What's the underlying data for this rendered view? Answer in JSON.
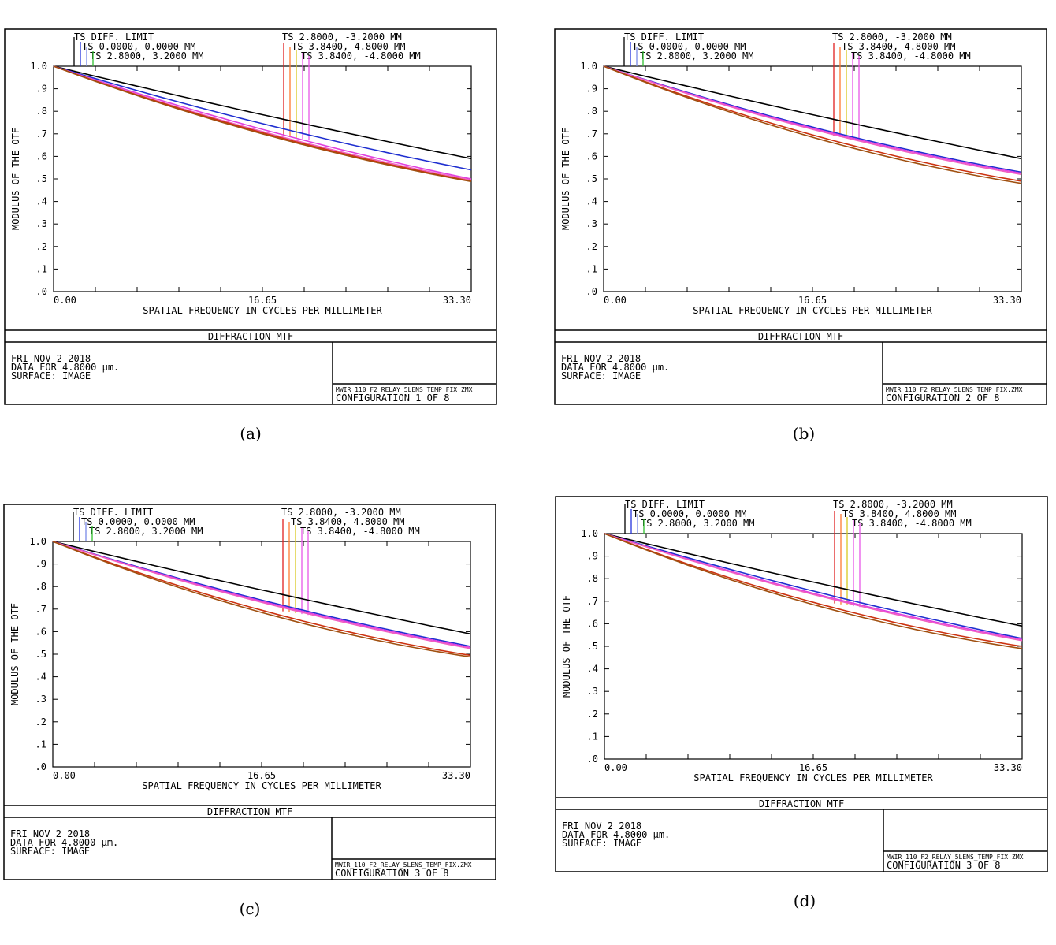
{
  "chart_data": [
    {
      "type": "line",
      "caption": "(a)",
      "ylabel": "MODULUS OF THE OTF",
      "xlabel": "SPATIAL FREQUENCY IN CYCLES PER MILLIMETER",
      "xticks": [
        "0.00",
        "16.65",
        "33.30"
      ],
      "yticks": [
        "1.0",
        ".9",
        ".8",
        ".7",
        ".6",
        ".5",
        ".4",
        ".3",
        ".2",
        ".1",
        ".0"
      ],
      "xlim": [
        0,
        33.3
      ],
      "ylim": [
        0,
        1
      ],
      "legend": {
        "left": [
          "TS DIFF. LIMIT",
          "TS 0.0000, 0.0000 MM",
          "TS 2.8000, 3.2000 MM"
        ],
        "right": [
          "TS 2.8000, -3.2000 MM",
          "TS 3.8400, 4.8000 MM",
          "TS 3.8400, -4.8000 MM"
        ]
      },
      "title": "DIFFRACTION MTF",
      "info": [
        "FRI NOV 2 2018",
        "DATA FOR 4.8000 µm.",
        "SURFACE: IMAGE"
      ],
      "file": "MWIR_110_F2_RELAY_5LENS_TEMP_FIX.ZMX",
      "config": "CONFIGURATION 1 OF 8",
      "series": [
        {
          "color": "#000000",
          "x": [
            0,
            16.65,
            33.3
          ],
          "y": [
            1.0,
            0.785,
            0.59
          ]
        },
        {
          "color": "#1f2fd0",
          "x": [
            0,
            16.65,
            33.3
          ],
          "y": [
            1.0,
            0.745,
            0.54
          ]
        },
        {
          "color": "#e040e0",
          "x": [
            0,
            16.65,
            33.3
          ],
          "y": [
            1.0,
            0.72,
            0.5
          ]
        },
        {
          "color": "#f060c0",
          "x": [
            0,
            16.65,
            33.3
          ],
          "y": [
            1.0,
            0.71,
            0.495
          ]
        },
        {
          "color": "#cc3311",
          "x": [
            0,
            16.65,
            33.3
          ],
          "y": [
            1.0,
            0.705,
            0.49
          ]
        },
        {
          "color": "#a05010",
          "x": [
            0,
            16.65,
            33.3
          ],
          "y": [
            1.0,
            0.7,
            0.488
          ]
        }
      ]
    },
    {
      "type": "line",
      "caption": "(b)",
      "ylabel": "MODULUS OF THE OTF",
      "xlabel": "SPATIAL FREQUENCY IN CYCLES PER MILLIMETER",
      "xticks": [
        "0.00",
        "16.65",
        "33.30"
      ],
      "yticks": [
        "1.0",
        ".9",
        ".8",
        ".7",
        ".6",
        ".5",
        ".4",
        ".3",
        ".2",
        ".1",
        ".0"
      ],
      "xlim": [
        0,
        33.3
      ],
      "ylim": [
        0,
        1
      ],
      "legend": {
        "left": [
          "TS DIFF. LIMIT",
          "TS 0.0000, 0.0000 MM",
          "TS 2.8000, 3.2000 MM"
        ],
        "right": [
          "TS 2.8000, -3.2000 MM",
          "TS 3.8400, 4.8000 MM",
          "TS 3.8400, -4.8000 MM"
        ]
      },
      "title": "DIFFRACTION MTF",
      "info": [
        "FRI NOV 2 2018",
        "DATA FOR 4.8000 µm.",
        "SURFACE: IMAGE"
      ],
      "file": "MWIR_110_F2_RELAY_5LENS_TEMP_FIX.ZMX",
      "config": "CONFIGURATION 2 OF 8",
      "series": [
        {
          "color": "#000000",
          "x": [
            0,
            16.65,
            33.3
          ],
          "y": [
            1.0,
            0.785,
            0.59
          ]
        },
        {
          "color": "#1f2fd0",
          "x": [
            0,
            16.65,
            33.3
          ],
          "y": [
            1.0,
            0.73,
            0.53
          ]
        },
        {
          "color": "#e040e0",
          "x": [
            0,
            16.65,
            33.3
          ],
          "y": [
            1.0,
            0.725,
            0.525
          ]
        },
        {
          "color": "#f060c0",
          "x": [
            0,
            16.65,
            33.3
          ],
          "y": [
            1.0,
            0.72,
            0.52
          ]
        },
        {
          "color": "#cc3311",
          "x": [
            0,
            16.65,
            33.3
          ],
          "y": [
            1.0,
            0.695,
            0.49
          ]
        },
        {
          "color": "#a05010",
          "x": [
            0,
            16.65,
            33.3
          ],
          "y": [
            1.0,
            0.685,
            0.48
          ]
        }
      ]
    },
    {
      "type": "line",
      "caption": "(c)",
      "ylabel": "MODULUS OF THE OTF",
      "xlabel": "SPATIAL FREQUENCY IN CYCLES PER MILLIMETER",
      "xticks": [
        "0.00",
        "16.65",
        "33.30"
      ],
      "yticks": [
        "1.0",
        ".9",
        ".8",
        ".7",
        ".6",
        ".5",
        ".4",
        ".3",
        ".2",
        ".1",
        ".0"
      ],
      "xlim": [
        0,
        33.3
      ],
      "ylim": [
        0,
        1
      ],
      "legend": {
        "left": [
          "TS DIFF. LIMIT",
          "TS 0.0000, 0.0000 MM",
          "TS 2.8000, 3.2000 MM"
        ],
        "right": [
          "TS 2.8000, -3.2000 MM",
          "TS 3.8400, 4.8000 MM",
          "TS 3.8400, -4.8000 MM"
        ]
      },
      "title": "DIFFRACTION MTF",
      "info": [
        "FRI NOV 2 2018",
        "DATA FOR 4.8000 µm.",
        "SURFACE: IMAGE"
      ],
      "file": "MWIR_110_F2_RELAY_5LENS_TEMP_FIX.ZMX",
      "config": "CONFIGURATION 3 OF 8",
      "series": [
        {
          "color": "#000000",
          "x": [
            0,
            16.65,
            33.3
          ],
          "y": [
            1.0,
            0.785,
            0.59
          ]
        },
        {
          "color": "#1f2fd0",
          "x": [
            0,
            16.65,
            33.3
          ],
          "y": [
            1.0,
            0.74,
            0.535
          ]
        },
        {
          "color": "#e040e0",
          "x": [
            0,
            16.65,
            33.3
          ],
          "y": [
            1.0,
            0.735,
            0.53
          ]
        },
        {
          "color": "#f060c0",
          "x": [
            0,
            16.65,
            33.3
          ],
          "y": [
            1.0,
            0.73,
            0.525
          ]
        },
        {
          "color": "#cc3311",
          "x": [
            0,
            16.65,
            33.3
          ],
          "y": [
            1.0,
            0.695,
            0.495
          ]
        },
        {
          "color": "#a05010",
          "x": [
            0,
            16.65,
            33.3
          ],
          "y": [
            1.0,
            0.685,
            0.488
          ]
        }
      ]
    },
    {
      "type": "line",
      "caption": "(d)",
      "ylabel": "MODULUS OF THE OTF",
      "xlabel": "SPATIAL FREQUENCY IN CYCLES PER MILLIMETER",
      "xticks": [
        "0.00",
        "16.65",
        "33.30"
      ],
      "yticks": [
        "1.0",
        ".9",
        ".8",
        ".7",
        ".6",
        ".5",
        ".4",
        ".3",
        ".2",
        ".1",
        ".0"
      ],
      "xlim": [
        0,
        33.3
      ],
      "ylim": [
        0,
        1
      ],
      "legend": {
        "left": [
          "TS DIFF. LIMIT",
          "TS 0.0000, 0.0000 MM",
          "TS 2.8000, 3.2000 MM"
        ],
        "right": [
          "TS 2.8000, -3.2000 MM",
          "TS 3.8400, 4.8000 MM",
          "TS 3.8400, -4.8000 MM"
        ]
      },
      "title": "DIFFRACTION MTF",
      "info": [
        "FRI NOV 2 2018",
        "DATA FOR 4.8000 µm.",
        "SURFACE: IMAGE"
      ],
      "file": "MWIR_110_F2_RELAY_5LENS_TEMP_FIX.ZMX",
      "config": "CONFIGURATION 3 OF 8",
      "series": [
        {
          "color": "#000000",
          "x": [
            0,
            16.65,
            33.3
          ],
          "y": [
            1.0,
            0.785,
            0.59
          ]
        },
        {
          "color": "#1f2fd0",
          "x": [
            0,
            16.65,
            33.3
          ],
          "y": [
            1.0,
            0.745,
            0.535
          ]
        },
        {
          "color": "#e040e0",
          "x": [
            0,
            16.65,
            33.3
          ],
          "y": [
            1.0,
            0.735,
            0.53
          ]
        },
        {
          "color": "#f060c0",
          "x": [
            0,
            16.65,
            33.3
          ],
          "y": [
            1.0,
            0.73,
            0.525
          ]
        },
        {
          "color": "#cc3311",
          "x": [
            0,
            16.65,
            33.3
          ],
          "y": [
            1.0,
            0.695,
            0.5
          ]
        },
        {
          "color": "#a05010",
          "x": [
            0,
            16.65,
            33.3
          ],
          "y": [
            1.0,
            0.685,
            0.49
          ]
        }
      ]
    }
  ]
}
